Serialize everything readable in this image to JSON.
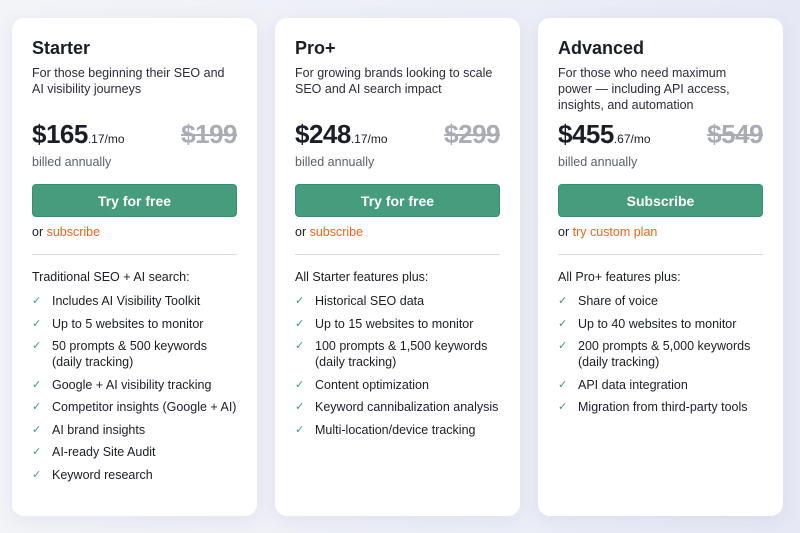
{
  "accent": "#459d7e",
  "link_color": "#f0641e",
  "plans": [
    {
      "name": "Starter",
      "description": "For those beginning their SEO and AI visibility journeys",
      "price": "$165",
      "cents": ".17/mo",
      "old_price": "$199",
      "billing": "billed annually",
      "button": "Try for free",
      "alt_prefix": "or ",
      "alt_link": "subscribe",
      "features_header": "Traditional SEO + AI search:",
      "features": [
        "Includes AI Visibility Toolkit",
        "Up to 5 websites to monitor",
        "50 prompts & 500 keywords (daily tracking)",
        "Google + AI visibility tracking",
        "Competitor insights (Google + AI)",
        "AI brand insights",
        "AI-ready Site Audit",
        "Keyword research"
      ]
    },
    {
      "name": "Pro+",
      "description": "For growing brands looking to scale SEO and AI search impact",
      "price": "$248",
      "cents": ".17/mo",
      "old_price": "$299",
      "billing": "billed annually",
      "button": "Try for free",
      "alt_prefix": "or ",
      "alt_link": "subscribe",
      "features_header": "All Starter features plus:",
      "features": [
        "Historical SEO data",
        "Up to 15 websites to monitor",
        "100 prompts & 1,500 keywords (daily tracking)",
        "Content optimization",
        "Keyword cannibalization analysis",
        "Multi-location/device tracking"
      ]
    },
    {
      "name": "Advanced",
      "description": "For those who need maximum power — including API access, insights, and automation",
      "price": "$455",
      "cents": ".67/mo",
      "old_price": "$549",
      "billing": "billed annually",
      "button": "Subscribe",
      "alt_prefix": "or ",
      "alt_link": "try custom plan",
      "features_header": "All Pro+ features plus:",
      "features": [
        "Share of voice",
        "Up to 40 websites to monitor",
        "200 prompts & 5,000 keywords (daily tracking)",
        "API data integration",
        "Migration from third-party tools"
      ]
    }
  ]
}
